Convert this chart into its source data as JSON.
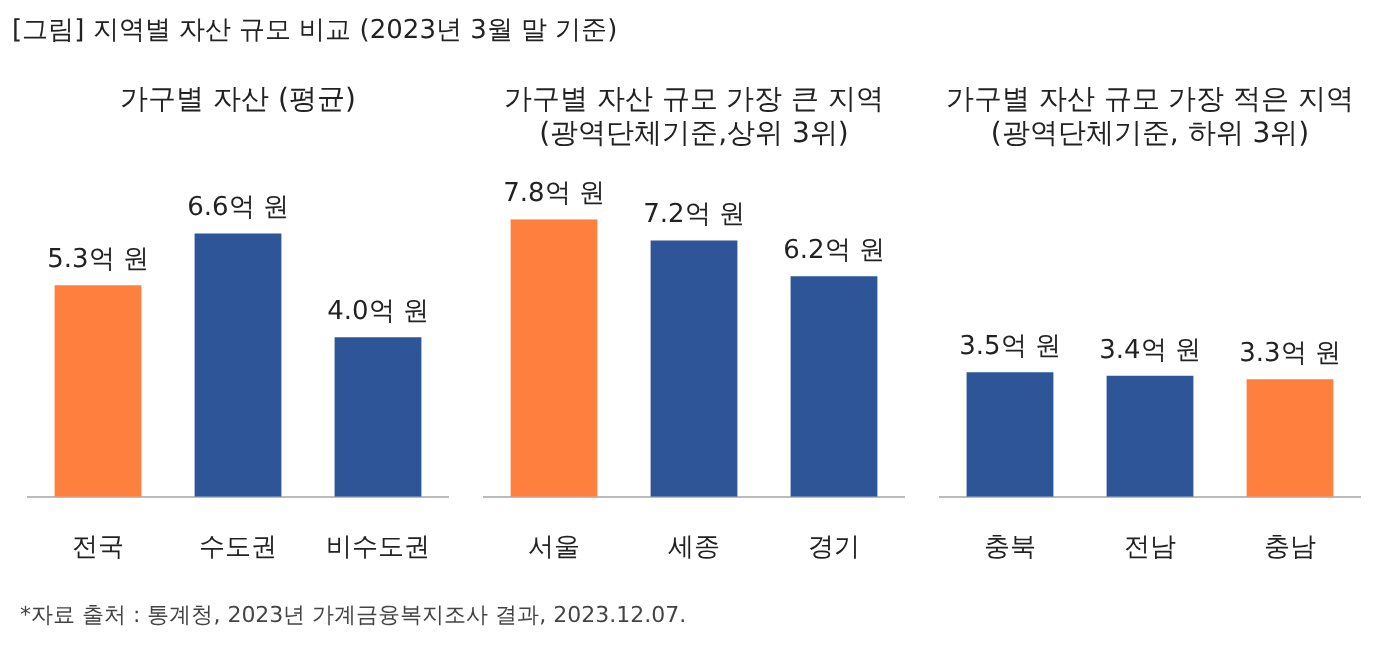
{
  "chart_data": [
    {
      "type": "bar",
      "title": "가구별 자산 (평균)",
      "annotations": [
        "[그림] 지역별 자산 규모 비교 (2023년 3월 말 기준)",
        "*자료 출처 : 통계청, 2023년 가계금융복지조사 결과, 2023.12.07."
      ],
      "categories": [
        "전국",
        "수도권",
        "비수도권"
      ],
      "values": [
        5.3,
        6.6,
        4.0
      ],
      "colors": [
        "#ff7f3f",
        "#2e5597",
        "#2e5597"
      ],
      "value_labels": [
        "5.3억 원",
        "6.6억 원",
        "4.0억 원"
      ],
      "tick_labels": "x"
    },
    {
      "type": "bar",
      "title": "가구별 자산 규모 가장 큰 지역\n(광역단체기준,상위 3위)",
      "categories": [
        "서울",
        "세종",
        "경기"
      ],
      "values": [
        7.8,
        7.2,
        6.2
      ],
      "colors": [
        "#ff7f3f",
        "#2e5597",
        "#2e5597"
      ],
      "value_labels": [
        "7.8억 원",
        "7.2억 원",
        "6.2억 원"
      ],
      "tick_labels": "x"
    },
    {
      "type": "bar",
      "title": "가구별 자산 규모 가장 적은 지역\n(광역단체기준, 하위 3위)",
      "categories": [
        "충북",
        "전남",
        "충남"
      ],
      "values": [
        3.5,
        3.4,
        3.3
      ],
      "colors": [
        "#2e5597",
        "#2e5597",
        "#ff7f3f"
      ],
      "value_labels": [
        "3.5억 원",
        "3.4억 원",
        "3.3억 원"
      ],
      "tick_labels": "x"
    }
  ]
}
